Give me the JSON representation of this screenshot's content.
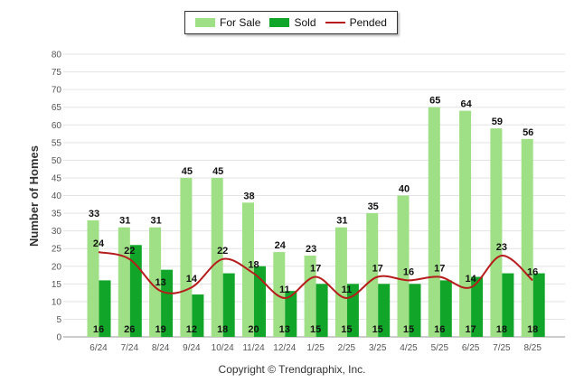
{
  "legend": {
    "for_sale": "For Sale",
    "sold": "Sold",
    "pended": "Pended"
  },
  "colors": {
    "for_sale": "#9fdf85",
    "sold": "#11a629",
    "pended": "#b71c1c",
    "grid": "#e3e3e3",
    "axis_text": "#555555"
  },
  "footer": "Copyright © Trendgraphix, Inc.",
  "chart_data": {
    "type": "bar",
    "categories": [
      "6/24",
      "7/24",
      "8/24",
      "9/24",
      "10/24",
      "11/24",
      "12/24",
      "1/25",
      "2/25",
      "3/25",
      "4/25",
      "5/25",
      "6/25",
      "7/25",
      "8/25"
    ],
    "series": [
      {
        "name": "For Sale",
        "type": "bar",
        "values": [
          33,
          31,
          31,
          45,
          45,
          38,
          24,
          23,
          31,
          35,
          40,
          65,
          64,
          59,
          56
        ]
      },
      {
        "name": "Sold",
        "type": "bar",
        "values": [
          16,
          26,
          19,
          12,
          18,
          20,
          13,
          15,
          15,
          15,
          15,
          16,
          17,
          18,
          18
        ]
      },
      {
        "name": "Pended",
        "type": "line",
        "values": [
          24,
          22,
          13,
          14,
          22,
          18,
          11,
          17,
          11,
          17,
          16,
          17,
          14,
          23,
          16
        ]
      }
    ],
    "ylabel": "Number of Homes",
    "ylim": [
      0,
      80
    ],
    "yticks": [
      0,
      5,
      10,
      15,
      20,
      25,
      30,
      35,
      40,
      45,
      50,
      55,
      60,
      65,
      70,
      75,
      80
    ],
    "grid": true,
    "legend_position": "top-center"
  }
}
